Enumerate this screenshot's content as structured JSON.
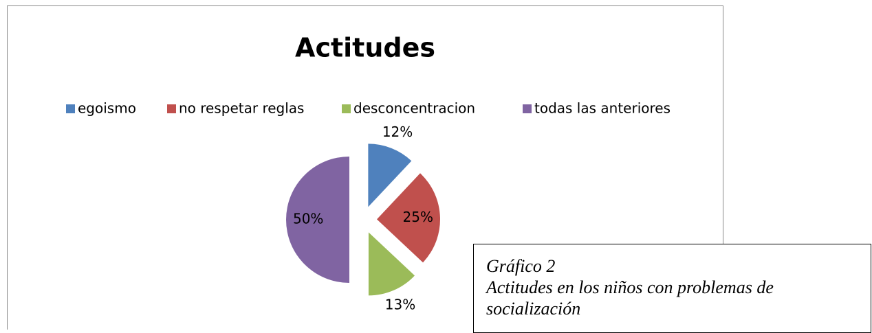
{
  "chart_data": {
    "type": "pie",
    "title": "Actitudes",
    "categories": [
      "egoismo",
      "no respetar reglas",
      "desconcentracion",
      "todas las anteriores"
    ],
    "values": [
      12,
      25,
      13,
      50
    ],
    "value_labels": [
      "12%",
      "25%",
      "13%",
      "50%"
    ],
    "colors": [
      "#4f81bd",
      "#c0504d",
      "#9bbb59",
      "#8064a2"
    ],
    "legend": "top"
  },
  "caption": {
    "lines": [
      "Gráfico 2",
      "Actitudes en los niños con problemas de",
      "socialización"
    ]
  }
}
